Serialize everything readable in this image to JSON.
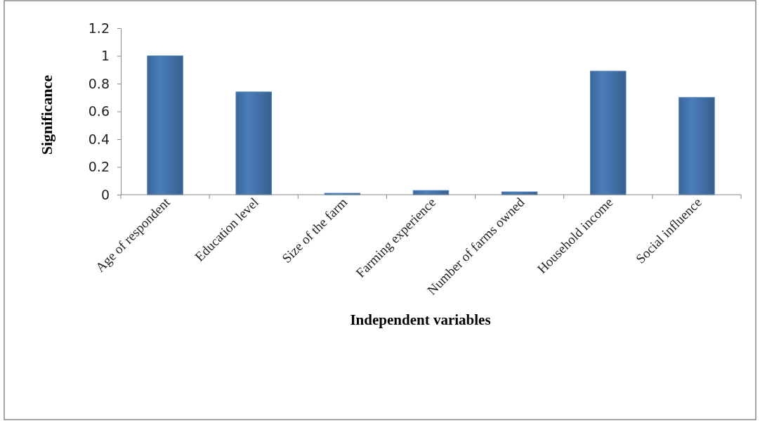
{
  "chart_data": {
    "type": "bar",
    "xlabel": "Independent variables",
    "ylabel": "Significance",
    "categories": [
      "Age of respondent",
      "Education level",
      "Size of the farm",
      "Farming experience",
      "Number of farms owned",
      "Household income",
      "Social influence"
    ],
    "values": [
      1.0,
      0.74,
      0.01,
      0.03,
      0.02,
      0.89,
      0.7
    ],
    "color": "#4a7ebb",
    "ylim": [
      0,
      1.2
    ],
    "yticks": [
      0,
      0.2,
      0.4,
      0.6,
      0.8,
      1,
      1.2
    ],
    "grid": false
  }
}
